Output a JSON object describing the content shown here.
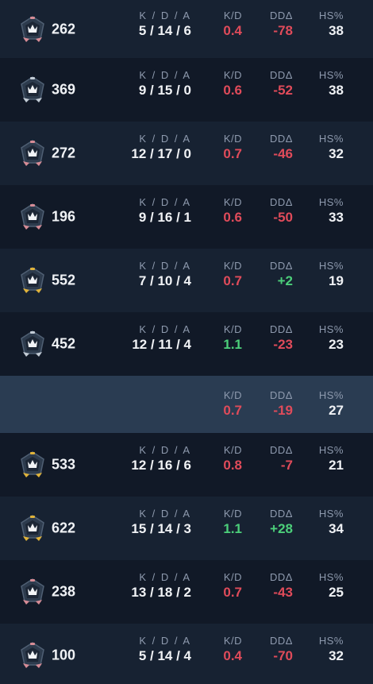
{
  "labels": {
    "kda": "K / D / A",
    "kd": "K/D",
    "dd": "DDΔ",
    "hs": "HS%"
  },
  "colors": {
    "negative": "#e04b5a",
    "positive": "#4ccf7a",
    "rank_silver": "#c3ccd6",
    "rank_gold": "#e0b33a",
    "rank_pink": "#d78c96"
  },
  "players": [
    {
      "rating": "262",
      "rank_icon": "rank-icon-pink",
      "kda": "5 / 14 / 6",
      "kd": "0.4",
      "kd_sign": "neg",
      "dd": "-78",
      "dd_sign": "neg",
      "hs": "38"
    },
    {
      "rating": "369",
      "rank_icon": "rank-icon-silver",
      "kda": "9 / 15 / 0",
      "kd": "0.6",
      "kd_sign": "neg",
      "dd": "-52",
      "dd_sign": "neg",
      "hs": "38"
    },
    {
      "rating": "272",
      "rank_icon": "rank-icon-pink",
      "kda": "12 / 17 / 0",
      "kd": "0.7",
      "kd_sign": "neg",
      "dd": "-46",
      "dd_sign": "neg",
      "hs": "32"
    },
    {
      "rating": "196",
      "rank_icon": "rank-icon-pink",
      "kda": "9 / 16 / 1",
      "kd": "0.6",
      "kd_sign": "neg",
      "dd": "-50",
      "dd_sign": "neg",
      "hs": "33"
    },
    {
      "rating": "552",
      "rank_icon": "rank-icon-gold",
      "kda": "7 / 10 / 4",
      "kd": "0.7",
      "kd_sign": "neg",
      "dd": "+2",
      "dd_sign": "pos",
      "hs": "19"
    },
    {
      "rating": "452",
      "rank_icon": "rank-icon-silver",
      "kda": "12 / 11 / 4",
      "kd": "1.1",
      "kd_sign": "pos",
      "dd": "-23",
      "dd_sign": "neg",
      "hs": "23"
    }
  ],
  "team_summary": {
    "kd": "0.7",
    "dd": "-19",
    "hs": "27"
  },
  "opponents": [
    {
      "rating": "533",
      "rank_icon": "rank-icon-gold",
      "kda": "12 / 16 / 6",
      "kd": "0.8",
      "kd_sign": "neg",
      "dd": "-7",
      "dd_sign": "neg",
      "hs": "21"
    },
    {
      "rating": "622",
      "rank_icon": "rank-icon-gold",
      "kda": "15 / 14 / 3",
      "kd": "1.1",
      "kd_sign": "pos",
      "dd": "+28",
      "dd_sign": "pos",
      "hs": "34"
    },
    {
      "rating": "238",
      "rank_icon": "rank-icon-pink",
      "kda": "13 / 18 / 2",
      "kd": "0.7",
      "kd_sign": "neg",
      "dd": "-43",
      "dd_sign": "neg",
      "hs": "25"
    },
    {
      "rating": "100",
      "rank_icon": "rank-icon-pink",
      "kda": "5 / 14 / 4",
      "kd": "0.4",
      "kd_sign": "neg",
      "dd": "-70",
      "dd_sign": "neg",
      "hs": "32"
    }
  ]
}
